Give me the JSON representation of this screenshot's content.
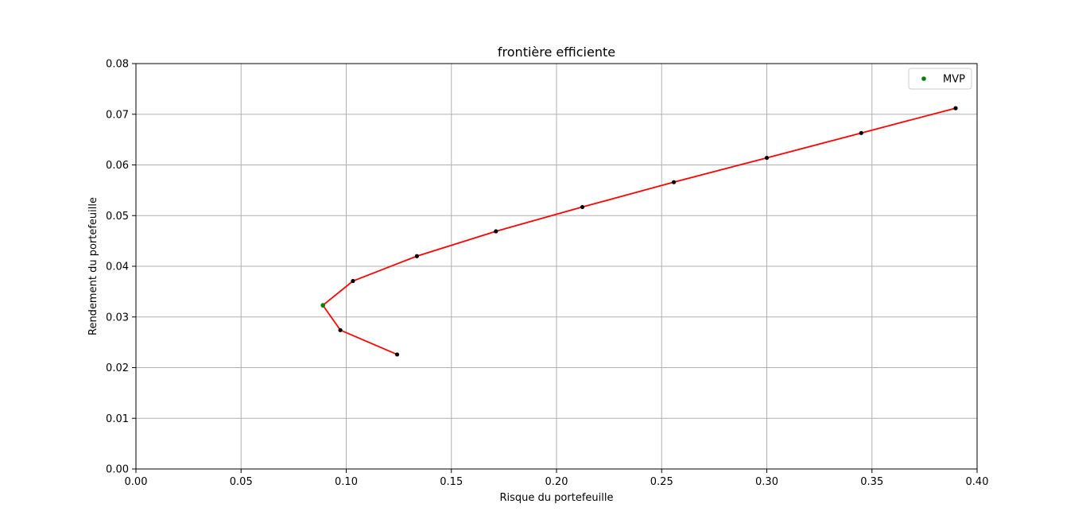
{
  "chart_data": {
    "type": "line",
    "title": "frontière efficiente",
    "xlabel": "Risque du portefeuille",
    "ylabel": "Rendement du portefeuille",
    "xlim": [
      0.0,
      0.4
    ],
    "ylim": [
      0.0,
      0.08
    ],
    "xticks": [
      "0.00",
      "0.05",
      "0.10",
      "0.15",
      "0.20",
      "0.25",
      "0.30",
      "0.35",
      "0.40"
    ],
    "yticks": [
      "0.00",
      "0.01",
      "0.02",
      "0.03",
      "0.04",
      "0.05",
      "0.06",
      "0.07",
      "0.08"
    ],
    "grid": true,
    "legend_position": "top-right",
    "series": [
      {
        "color": "#ff0000",
        "marker_color": "#000000",
        "points": [
          {
            "x": 0.1242,
            "y": 0.0226
          },
          {
            "x": 0.0972,
            "y": 0.0274
          },
          {
            "x": 0.0889,
            "y": 0.0323
          },
          {
            "x": 0.1032,
            "y": 0.0371
          },
          {
            "x": 0.1336,
            "y": 0.042
          },
          {
            "x": 0.1712,
            "y": 0.0469
          },
          {
            "x": 0.2123,
            "y": 0.0517
          },
          {
            "x": 0.2558,
            "y": 0.0566
          },
          {
            "x": 0.3,
            "y": 0.0614
          },
          {
            "x": 0.3449,
            "y": 0.0663
          },
          {
            "x": 0.3898,
            "y": 0.0712
          }
        ]
      },
      {
        "name": "MVP",
        "color": "#008000",
        "points": [
          {
            "x": 0.0889,
            "y": 0.0323
          }
        ]
      }
    ]
  }
}
